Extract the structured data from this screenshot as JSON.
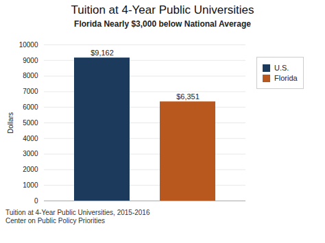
{
  "chart_data": {
    "type": "bar",
    "title": "Tuition at 4-Year Public Universities",
    "subtitle": "Florida Nearly $3,000 below National Average",
    "categories": [
      "U.S.",
      "Florida"
    ],
    "values": [
      9162,
      6351
    ],
    "value_labels": [
      "$9,162",
      "$6,351"
    ],
    "colors": [
      "#1b3a5c",
      "#b8581e"
    ],
    "ylabel": "Dollars",
    "ylim": [
      0,
      10000
    ],
    "yticks": [
      0,
      1000,
      2000,
      3000,
      4000,
      5000,
      6000,
      7000,
      8000,
      9000,
      10000
    ],
    "grid": true,
    "legend": "right",
    "data_labels": true,
    "tick_labels": "y",
    "annotations": [
      "Tuition at 4-Year Public Universities, 2015-2016",
      "Center on Public Policy Priorities"
    ]
  }
}
